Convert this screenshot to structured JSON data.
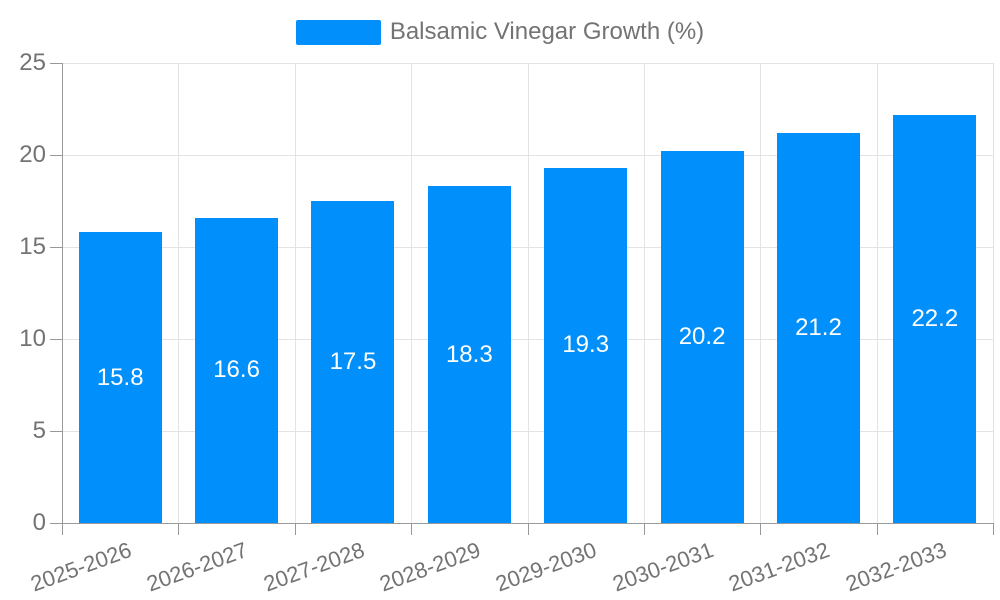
{
  "legend": {
    "position": "top",
    "label": "Balsamic Vinegar Growth (%)"
  },
  "chart_data": {
    "type": "bar",
    "title": "Balsamic Vinegar Growth (%)",
    "series_name": "Balsamic Vinegar Growth (%)",
    "categories": [
      "2025-2026",
      "2026-2027",
      "2027-2028",
      "2028-2029",
      "2029-2030",
      "2030-2031",
      "2031-2032",
      "2032-2033"
    ],
    "values": [
      15.8,
      16.6,
      17.5,
      18.3,
      19.3,
      20.2,
      21.2,
      22.2
    ],
    "value_labels": [
      "15.8",
      "16.6",
      "17.5",
      "18.3",
      "19.3",
      "20.2",
      "21.2",
      "22.2"
    ],
    "xlabel": "",
    "ylabel": "",
    "ylim": [
      0,
      25
    ],
    "yticks": [
      0,
      5,
      10,
      15,
      20,
      25
    ],
    "grid": true,
    "x_label_rotation_deg": -20,
    "legend_position": "top",
    "colors": {
      "bar": "#008FFB",
      "bar_label": "#ffffff",
      "grid": "#e3e3e3",
      "axis_line": "#999999",
      "axis_text": "#737373",
      "background": "#ffffff"
    }
  }
}
